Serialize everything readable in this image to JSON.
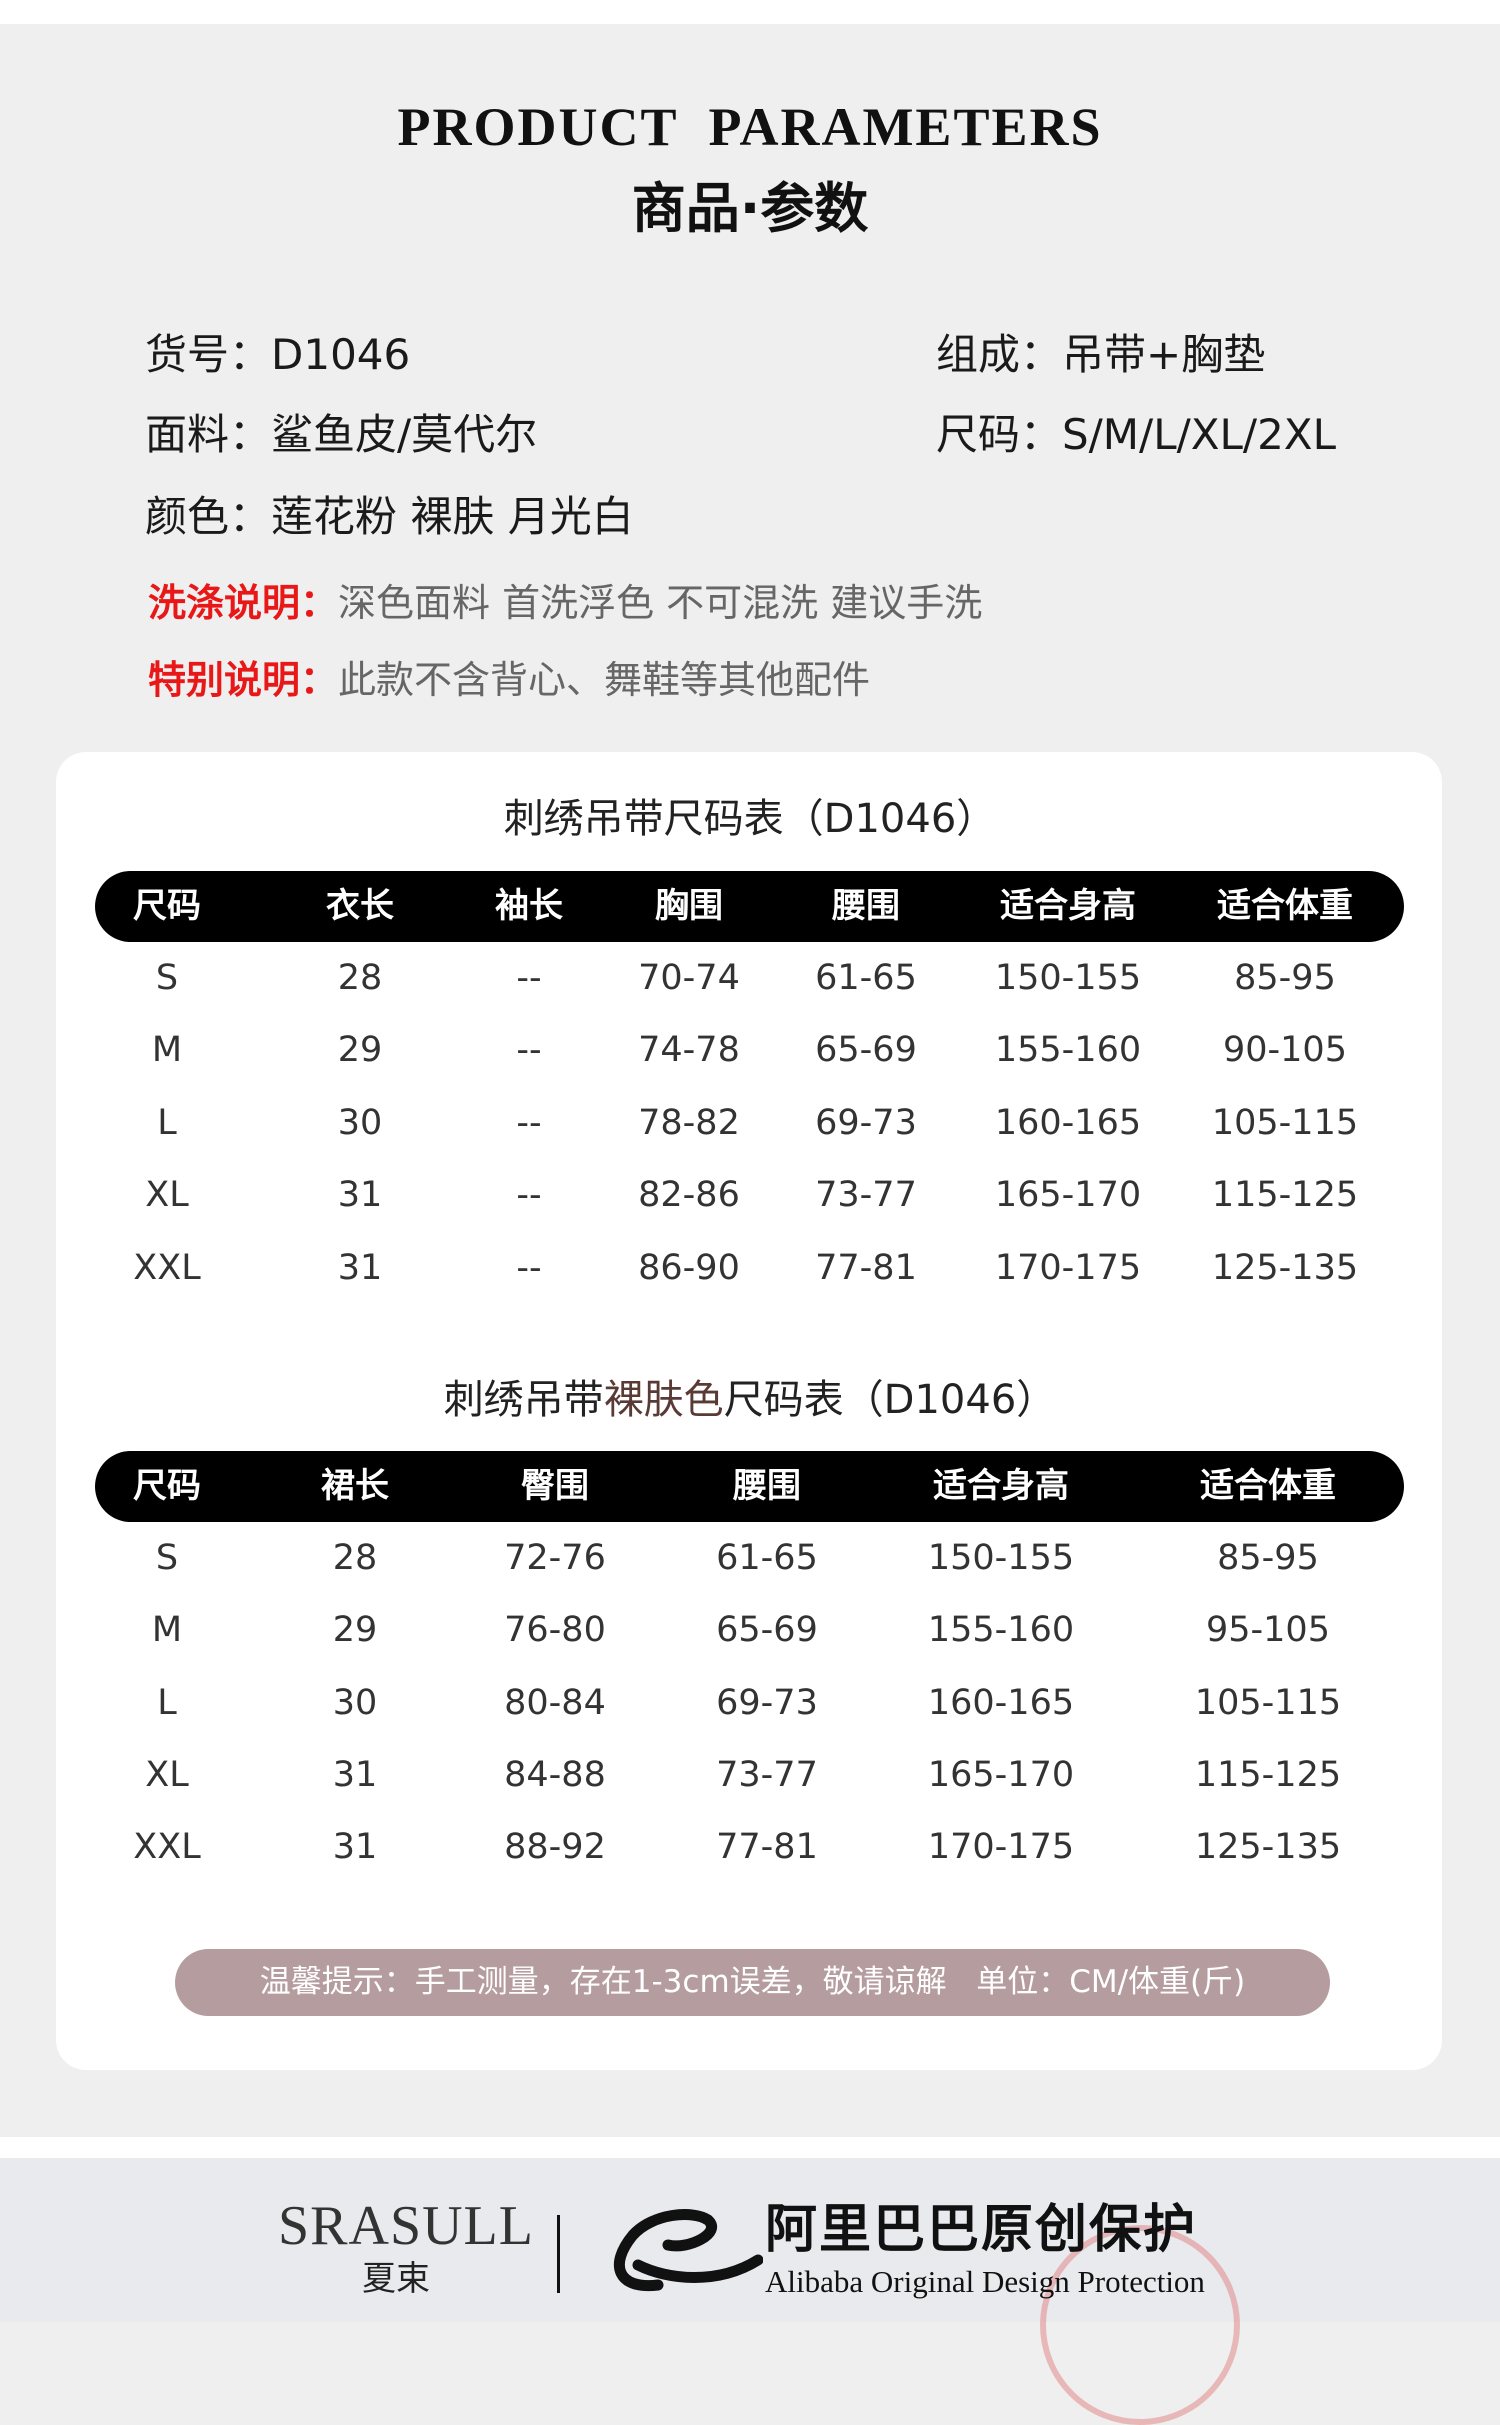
{
  "header": {
    "title_en": "PRODUCT  PARAMETERS",
    "title_cn": "商品·参数"
  },
  "info": {
    "item_no": "货号：D1046",
    "composition": "组成：吊带+胸垫",
    "fabric": "面料：鲨鱼皮/莫代尔",
    "sizes": "尺码：S/M/L/XL/2XL",
    "colors": "颜色：莲花粉 裸肤 月光白",
    "wash_label": "洗涤说明：",
    "wash_text": "深色面料 首洗浮色 不可混洗 建议手洗",
    "special_label": "特别说明：",
    "special_text": "此款不含背心、舞鞋等其他配件"
  },
  "table1": {
    "title": "刺绣吊带尺码表（D1046）",
    "headers": [
      "尺码",
      "衣长",
      "袖长",
      "胸围",
      "腰围",
      "适合身高",
      "适合体重"
    ],
    "rows": [
      [
        "S",
        "28",
        "--",
        "70-74",
        "61-65",
        "150-155",
        "85-95"
      ],
      [
        "M",
        "29",
        "--",
        "74-78",
        "65-69",
        "155-160",
        "90-105"
      ],
      [
        "L",
        "30",
        "--",
        "78-82",
        "69-73",
        "160-165",
        "105-115"
      ],
      [
        "XL",
        "31",
        "--",
        "82-86",
        "73-77",
        "165-170",
        "115-125"
      ],
      [
        "XXL",
        "31",
        "--",
        "86-90",
        "77-81",
        "170-175",
        "125-135"
      ]
    ]
  },
  "table2": {
    "title_a": "刺绣吊带",
    "title_hl": "裸肤色",
    "title_b": "尺码表（D1046）",
    "headers": [
      "尺码",
      "裙长",
      "臀围",
      "腰围",
      "适合身高",
      "适合体重"
    ],
    "rows": [
      [
        "S",
        "28",
        "72-76",
        "61-65",
        "150-155",
        "85-95"
      ],
      [
        "M",
        "29",
        "76-80",
        "65-69",
        "155-160",
        "95-105"
      ],
      [
        "L",
        "30",
        "80-84",
        "69-73",
        "160-165",
        "105-115"
      ],
      [
        "XL",
        "31",
        "84-88",
        "73-77",
        "165-170",
        "115-125"
      ],
      [
        "XXL",
        "31",
        "88-92",
        "77-81",
        "170-175",
        "125-135"
      ]
    ]
  },
  "tip": "温馨提示：手工测量，存在1-3cm误差，敬请谅解   单位：CM/体重(斤)",
  "footer": {
    "brand": "SRASULL",
    "brand_cn": "夏束",
    "alibaba_cn": "阿里巴巴原创保护",
    "alibaba_en": "Alibaba Original Design Protection"
  },
  "colors": {
    "accent_red": "#e81818",
    "pill": "#b59c9f",
    "header_bar": "#000000",
    "highlight": "#5a3a34"
  }
}
